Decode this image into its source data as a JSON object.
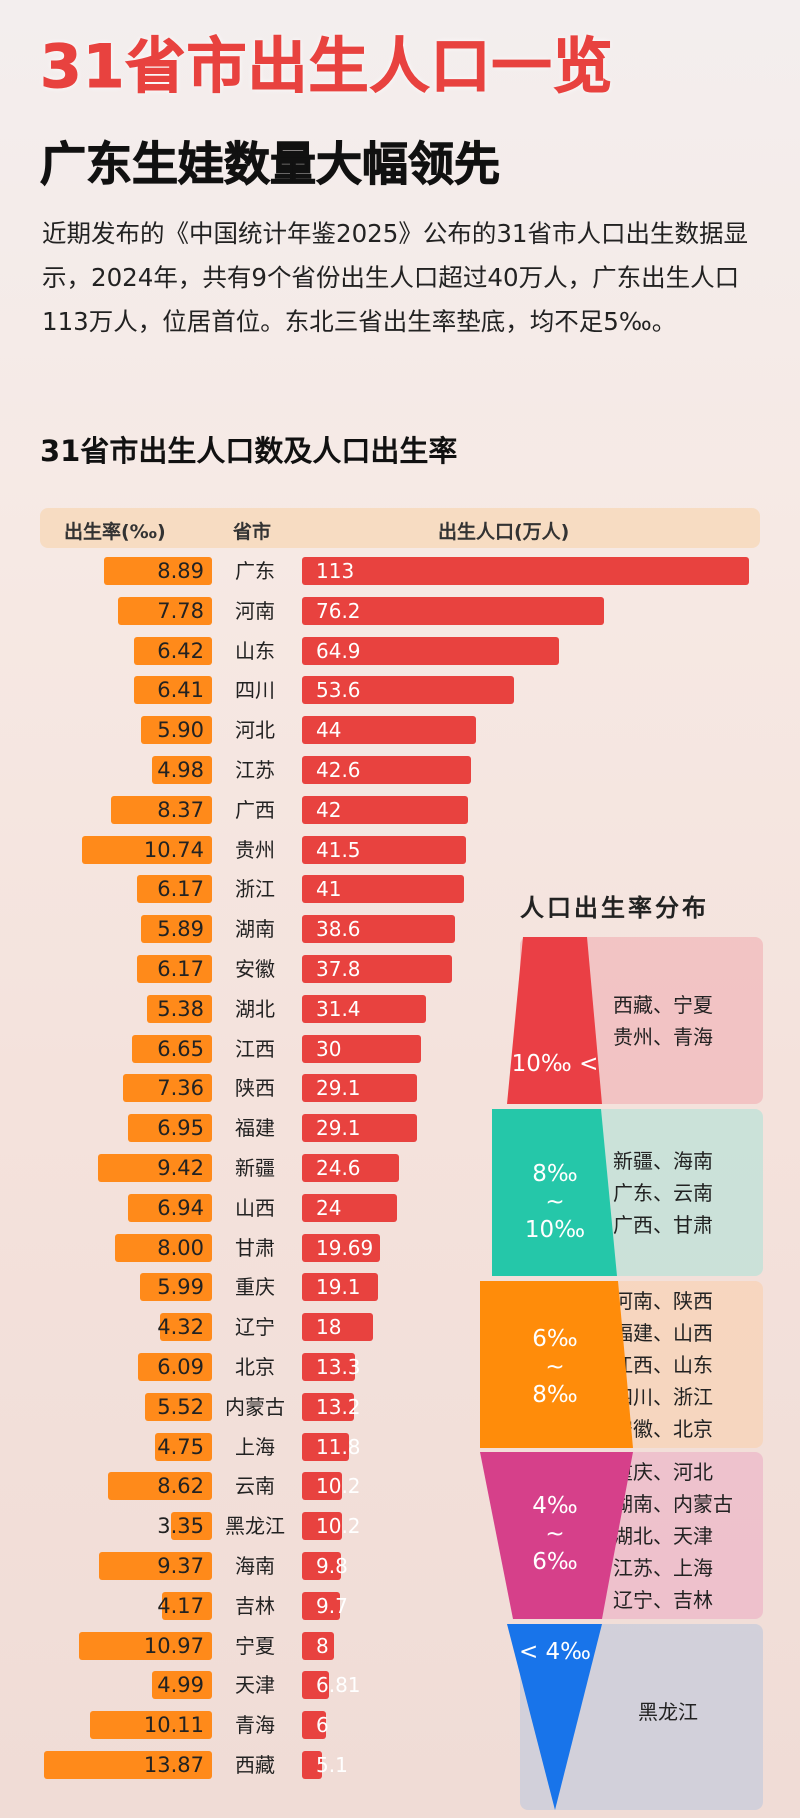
{
  "title": "31省市出生人口一览",
  "subtitle": "广东生娃数量大幅领先",
  "intro": "近期发布的《中国统计年鉴2025》公布的31省市人口出生数据显示，2024年，共有9个省份出生人口超过40万人，广东出生人口113万人，位居首位。东北三省出生率垫底，均不足5‰。",
  "colors": {
    "title": "#e8423f",
    "rate_bar": "#ff8a1a",
    "pop_bar": "#e8423f",
    "funnel": [
      "#ea3f45",
      "#25c7a9",
      "#ff8c0a",
      "#d6408a",
      "#1874ea"
    ]
  },
  "chart_data": {
    "type": "bar",
    "title": "31省市出生人口数及人口出生率",
    "headers": {
      "rate": "出生率(‰)",
      "province": "省市",
      "population": "出生人口(万人)"
    },
    "categories": [
      "广东",
      "河南",
      "山东",
      "四川",
      "河北",
      "江苏",
      "广西",
      "贵州",
      "浙江",
      "湖南",
      "安徽",
      "湖北",
      "江西",
      "陕西",
      "福建",
      "新疆",
      "山西",
      "甘肃",
      "重庆",
      "辽宁",
      "北京",
      "内蒙古",
      "上海",
      "云南",
      "黑龙江",
      "海南",
      "吉林",
      "宁夏",
      "天津",
      "青海",
      "西藏"
    ],
    "series": [
      {
        "name": "出生率(‰)",
        "values": [
          "8.89",
          "7.78",
          "6.42",
          "6.41",
          "5.90",
          "4.98",
          "8.37",
          "10.74",
          "6.17",
          "5.89",
          "6.17",
          "5.38",
          "6.65",
          "7.36",
          "6.95",
          "9.42",
          "6.94",
          "8.00",
          "5.99",
          "4.32",
          "6.09",
          "5.52",
          "4.75",
          "8.62",
          "3.35",
          "9.37",
          "4.17",
          "10.97",
          "4.99",
          "10.11",
          "13.87"
        ]
      },
      {
        "name": "出生人口(万人)",
        "values": [
          "113",
          "76.2",
          "64.9",
          "53.6",
          "44",
          "42.6",
          "42",
          "41.5",
          "41",
          "38.6",
          "37.8",
          "31.4",
          "30",
          "29.1",
          "29.1",
          "24.6",
          "24",
          "19.69",
          "19.1",
          "18",
          "13.3",
          "13.2",
          "11.8",
          "10.2",
          "10.2",
          "9.8",
          "9.7",
          "8",
          "6.81",
          "6",
          "5.1"
        ]
      }
    ]
  },
  "funnel": {
    "title": "人口出生率分布",
    "segments": [
      {
        "label": "10‰ <",
        "provinces": [
          "西藏、宁夏",
          "贵州、青海"
        ]
      },
      {
        "label": "8‰\n~\n10‰",
        "provinces": [
          "新疆、海南",
          "广东、云南",
          "广西、甘肃"
        ]
      },
      {
        "label": "6‰\n~\n8‰",
        "provinces": [
          "河南、陕西",
          "福建、山西",
          "江西、山东",
          "四川、浙江",
          "安徽、北京"
        ]
      },
      {
        "label": "4‰\n~\n6‰",
        "provinces": [
          "重庆、河北",
          "湖南、内蒙古",
          "湖北、天津",
          "江苏、上海",
          "辽宁、吉林"
        ]
      },
      {
        "label": "< 4‰",
        "provinces": [
          "黑龙江"
        ]
      }
    ]
  }
}
